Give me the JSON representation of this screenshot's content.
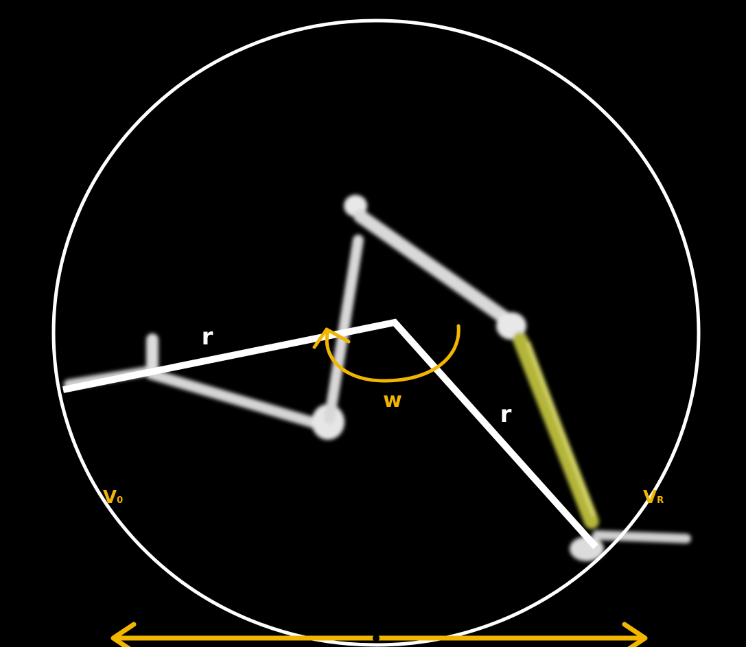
{
  "labels": {
    "radius_left": "r",
    "radius_right": "r",
    "angular_velocity": "w",
    "left_velocity": {
      "main": "V",
      "sub": "0"
    },
    "right_velocity": {
      "main": "V",
      "sub": "R"
    }
  }
}
